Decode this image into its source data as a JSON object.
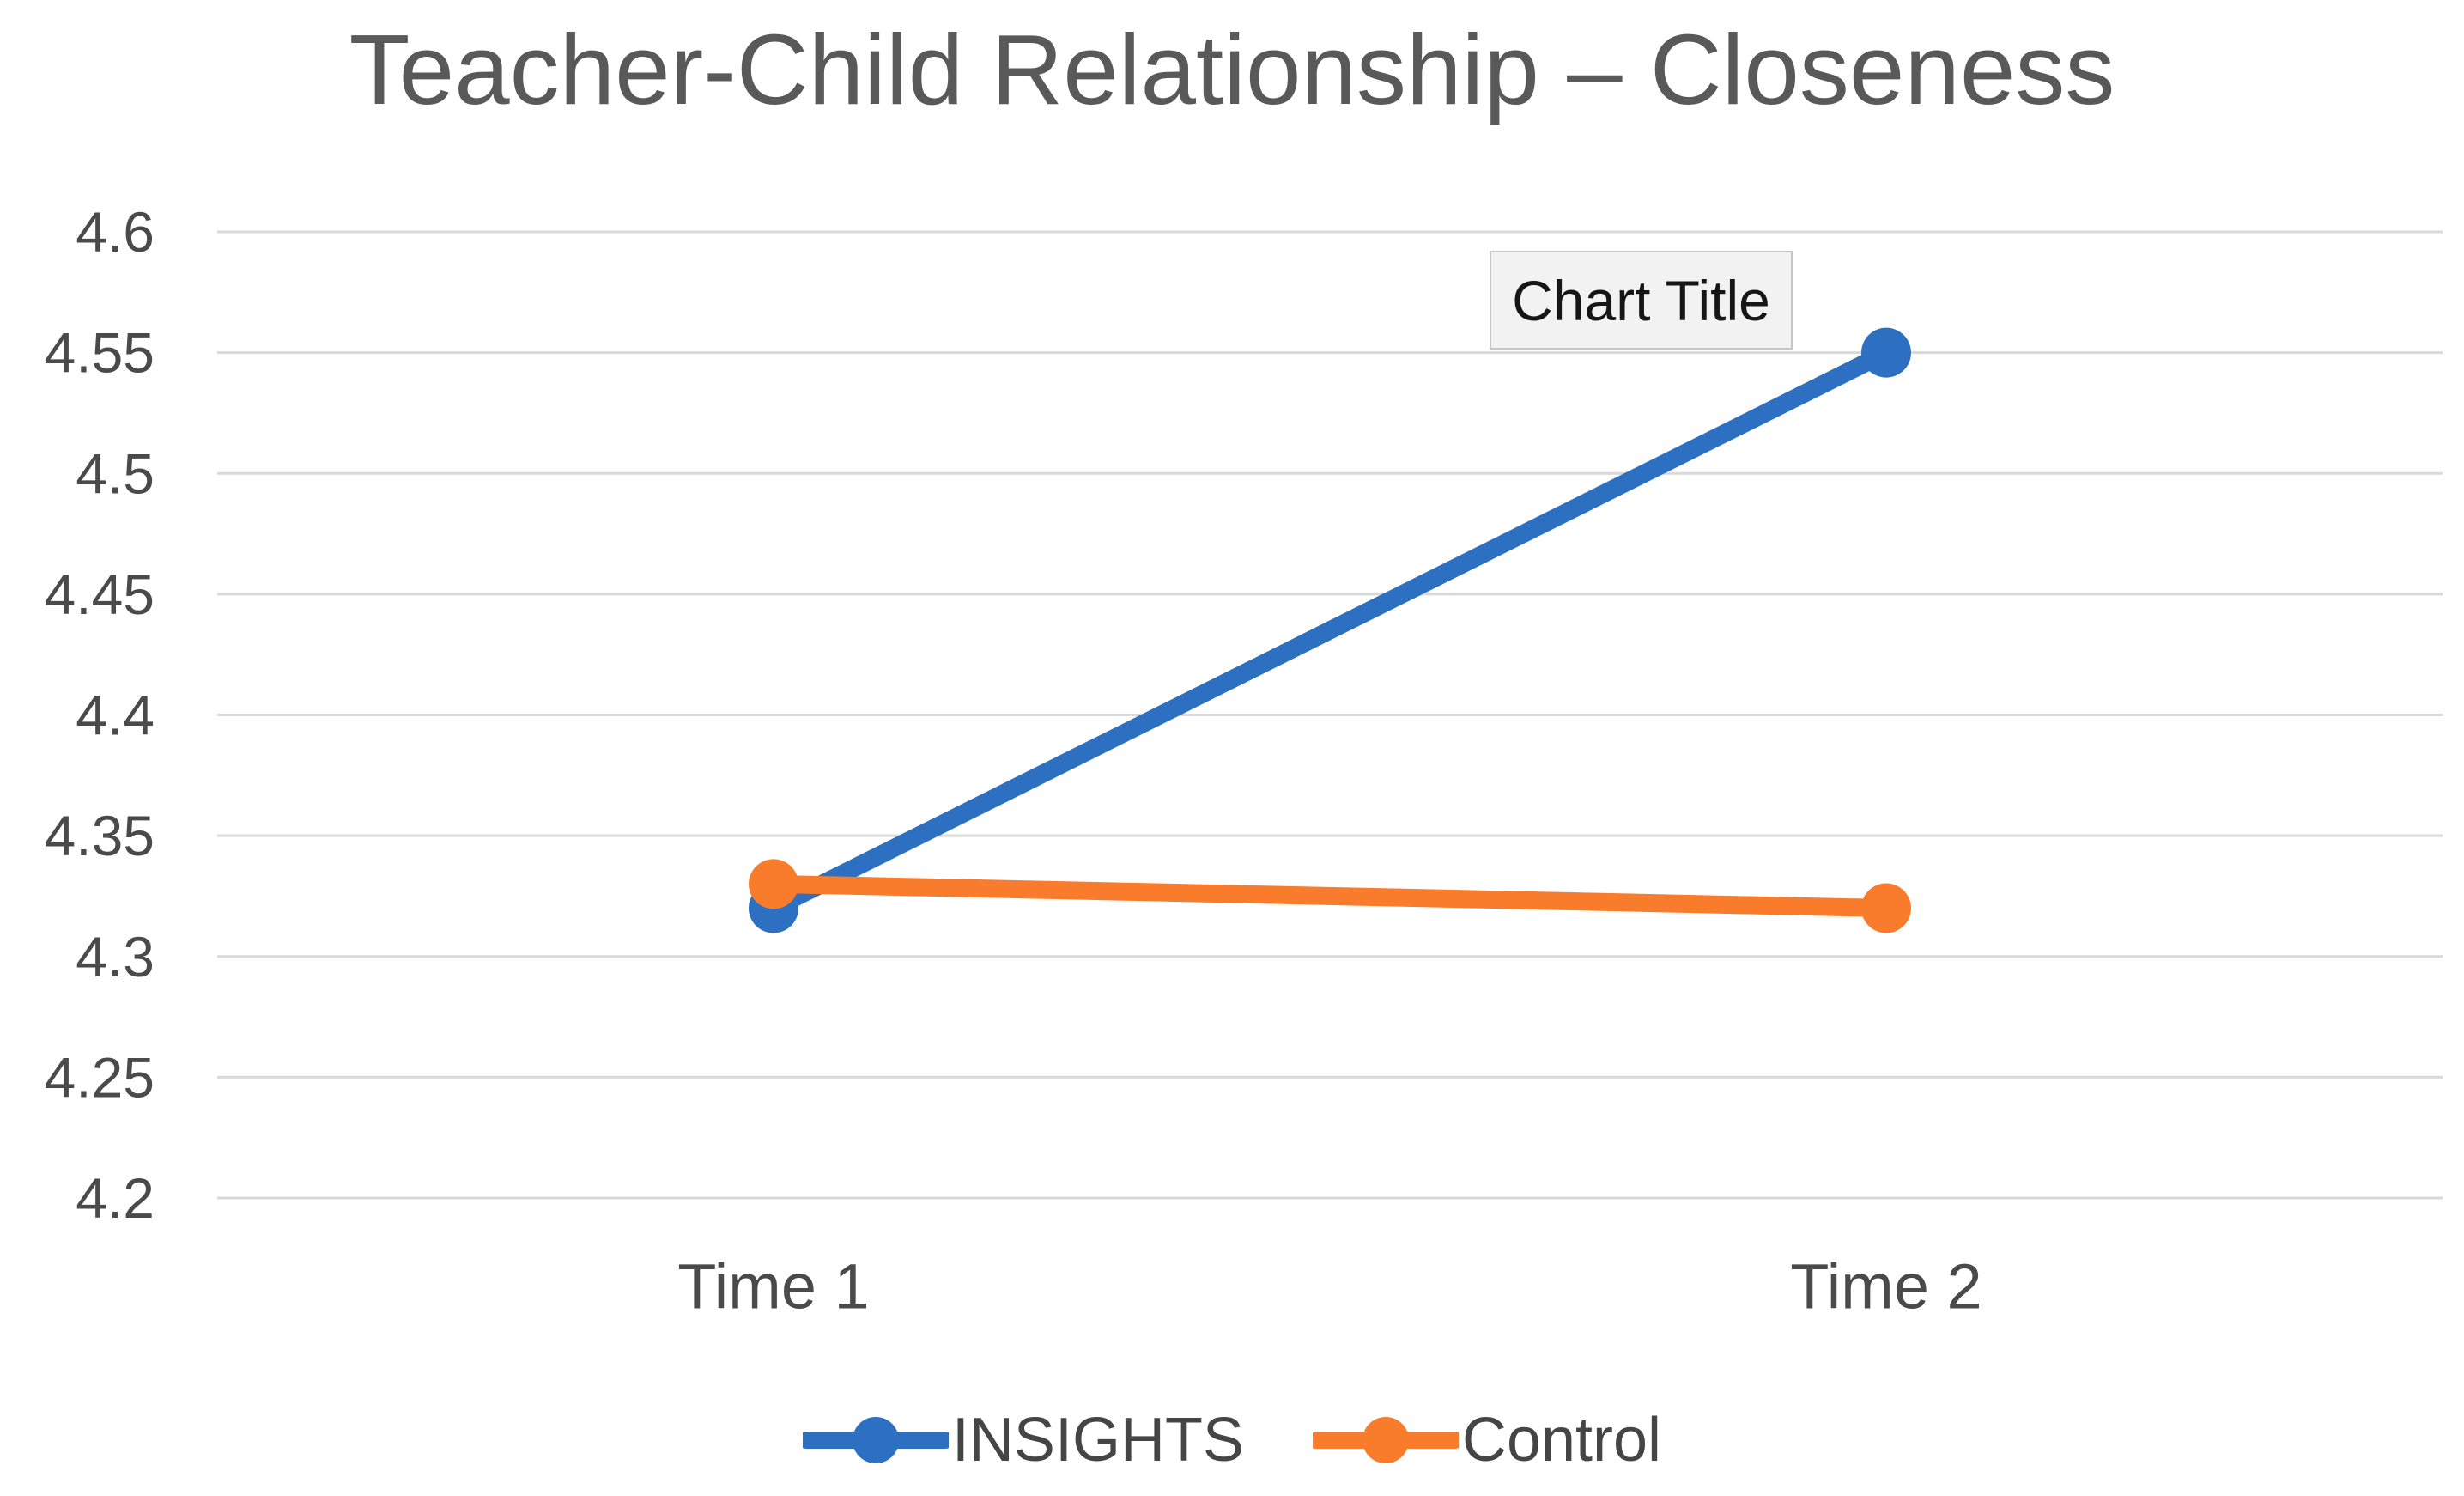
{
  "chart_data": {
    "type": "line",
    "title": "Teacher-Child Relationship – Closeness",
    "overlay_label": "Chart Title",
    "categories": [
      "Time 1",
      "Time 2"
    ],
    "series": [
      {
        "name": "INSIGHTS",
        "color": "#2D6FC1",
        "values": [
          4.32,
          4.55
        ]
      },
      {
        "name": "Control",
        "color": "#F87C2C",
        "values": [
          4.33,
          4.32
        ]
      }
    ],
    "ylim": [
      4.2,
      4.6
    ],
    "ytick_labels": [
      "4.2",
      "4.25",
      "4.3",
      "4.35",
      "4.4",
      "4.45",
      "4.5",
      "4.55",
      "4.6"
    ],
    "xlabel": "",
    "ylabel": "",
    "grid": "horizontal",
    "legend_position": "bottom",
    "colors": {
      "gridline": "#d9d9d9",
      "title_text": "#595959",
      "axis_text": "#4a4a4a",
      "overlay_bg": "#f2f2f2",
      "overlay_border": "#c6c6c6",
      "overlay_text": "#161616"
    }
  }
}
